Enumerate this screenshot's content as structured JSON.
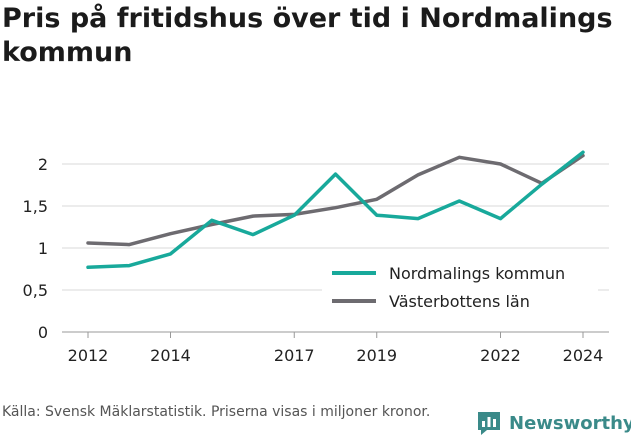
{
  "chart_data": {
    "type": "line",
    "title": "Pris på fritidshus över tid i Nordmalings kommun",
    "xlabel": "",
    "ylabel": "",
    "x": [
      2012,
      2013,
      2014,
      2015,
      2016,
      2017,
      2018,
      2019,
      2020,
      2021,
      2022,
      2023,
      2024
    ],
    "xticks": [
      2012,
      2014,
      2017,
      2019,
      2022,
      2024
    ],
    "yticks": [
      0,
      0.5,
      1,
      1.5,
      2
    ],
    "ytick_labels": [
      "0",
      "0,5",
      "1",
      "1,5",
      "2"
    ],
    "ylim": [
      0,
      2.2
    ],
    "xlim": [
      2012,
      2024
    ],
    "grid": "horizontal",
    "legend_position": "bottom-right",
    "series": [
      {
        "name": "Nordmalings kommun",
        "color": "#18a99b",
        "values": [
          0.77,
          0.79,
          0.93,
          1.33,
          1.16,
          1.39,
          1.88,
          1.39,
          1.35,
          1.56,
          1.35,
          1.76,
          2.14
        ]
      },
      {
        "name": "Västerbottens län",
        "color": "#6d6b70",
        "values": [
          1.06,
          1.04,
          1.17,
          1.28,
          1.38,
          1.4,
          1.48,
          1.58,
          1.87,
          2.08,
          2.0,
          1.77,
          2.1
        ]
      }
    ]
  },
  "source_text": "Källa: Svensk Mäklarstatistik. Priserna visas i miljoner kronor.",
  "brand": {
    "name": "Newsworthy",
    "icon": "bar-chart-speech-bubble-icon",
    "color": "#3a8a89"
  }
}
